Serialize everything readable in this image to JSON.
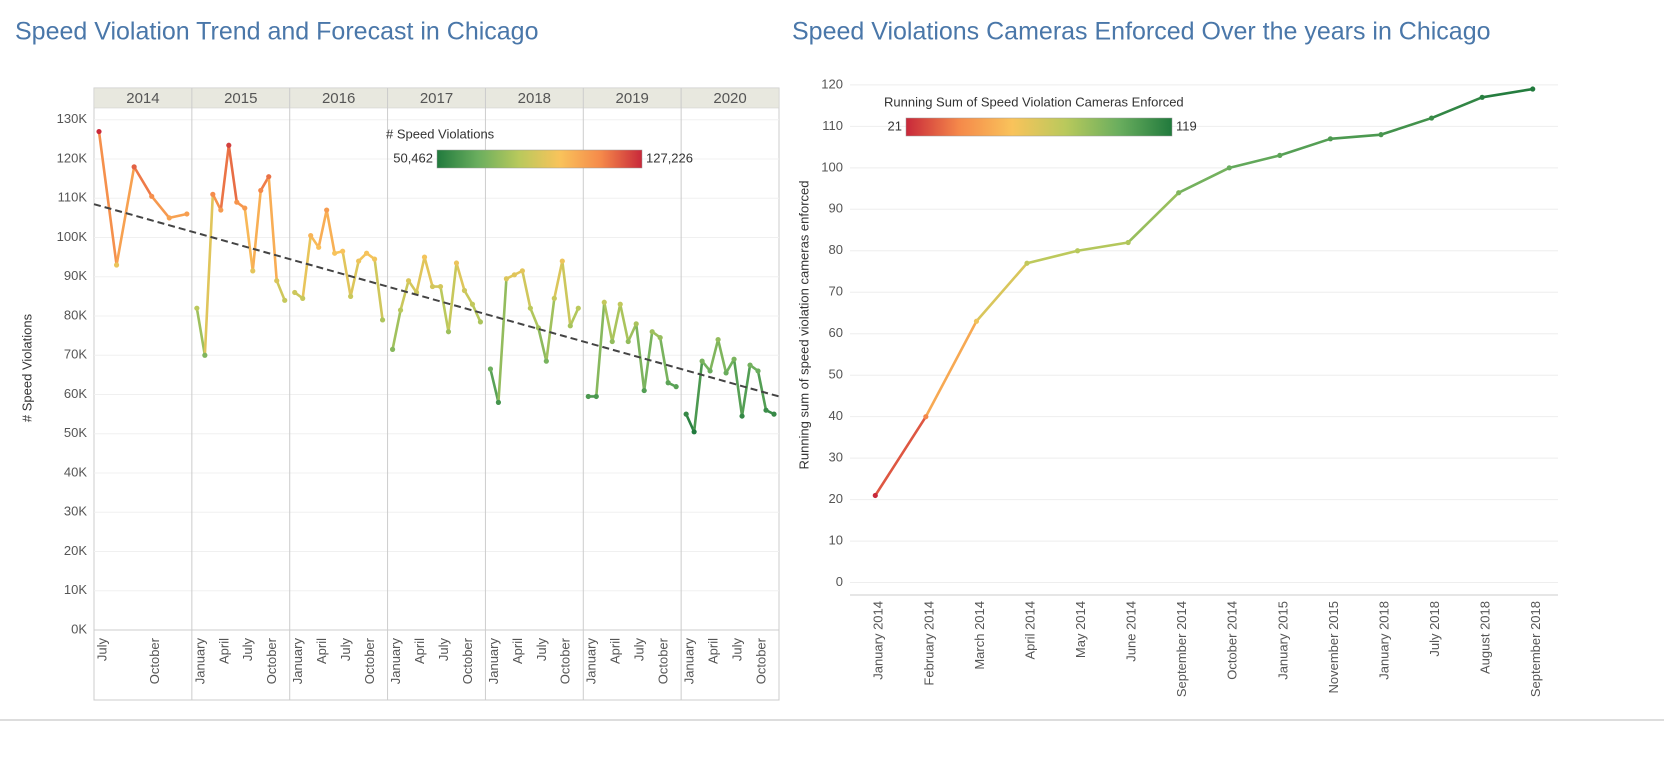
{
  "chart_data": [
    {
      "type": "line",
      "title": "Speed Violation Trend and Forecast in Chicago",
      "y_label": "# Speed Violations",
      "ylim": [
        0,
        133000
      ],
      "yticks": [
        {
          "value": 0,
          "label": "0K"
        },
        {
          "value": 10000,
          "label": "10K"
        },
        {
          "value": 20000,
          "label": "20K"
        },
        {
          "value": 30000,
          "label": "30K"
        },
        {
          "value": 40000,
          "label": "40K"
        },
        {
          "value": 50000,
          "label": "50K"
        },
        {
          "value": 60000,
          "label": "60K"
        },
        {
          "value": 70000,
          "label": "70K"
        },
        {
          "value": 80000,
          "label": "80K"
        },
        {
          "value": 90000,
          "label": "90K"
        },
        {
          "value": 100000,
          "label": "100K"
        },
        {
          "value": 110000,
          "label": "110K"
        },
        {
          "value": 120000,
          "label": "120K"
        },
        {
          "value": 130000,
          "label": "130K"
        }
      ],
      "grid": true,
      "legend": {
        "title": "# Speed Violations",
        "min": {
          "value": 50462,
          "label": "50,462"
        },
        "max": {
          "value": 127226,
          "label": "127,226"
        },
        "colors": [
          "#217a3d",
          "#6aae5e",
          "#b9c95c",
          "#f9c35b",
          "#f5894a",
          "#c8283a"
        ]
      },
      "trend": [
        108500,
        59500
      ],
      "panels": [
        {
          "label": "2014",
          "categories": [
            "July",
            null,
            null,
            "October",
            null,
            null
          ],
          "values": [
            127000,
            93000,
            118000,
            110500,
            105000,
            106000
          ]
        },
        {
          "label": "2015",
          "categories": [
            "January",
            null,
            null,
            "April",
            null,
            null,
            "July",
            null,
            null,
            "October",
            null,
            null
          ],
          "values": [
            82000,
            70000,
            111000,
            107000,
            123500,
            109000,
            107500,
            91500,
            112000,
            115500,
            89000,
            84000
          ]
        },
        {
          "label": "2016",
          "categories": [
            "January",
            null,
            null,
            "April",
            null,
            null,
            "July",
            null,
            null,
            "October",
            null,
            null
          ],
          "values": [
            86000,
            84500,
            100500,
            97500,
            107000,
            96000,
            96500,
            85000,
            94000,
            96000,
            94500,
            79000
          ]
        },
        {
          "label": "2017",
          "categories": [
            "January",
            null,
            null,
            "April",
            null,
            null,
            "July",
            null,
            null,
            "October",
            null,
            null
          ],
          "values": [
            71500,
            81500,
            89000,
            86000,
            95000,
            87500,
            87500,
            76000,
            93500,
            86500,
            83000,
            78500
          ]
        },
        {
          "label": "2018",
          "categories": [
            "January",
            null,
            null,
            "April",
            null,
            null,
            "July",
            null,
            null,
            "October",
            null,
            null
          ],
          "values": [
            66500,
            58000,
            89500,
            90500,
            91500,
            82000,
            77000,
            68500,
            84500,
            94000,
            77500,
            82000
          ]
        },
        {
          "label": "2019",
          "categories": [
            "January",
            null,
            null,
            "April",
            null,
            null,
            "July",
            null,
            null,
            "October",
            null,
            null
          ],
          "values": [
            59500,
            59500,
            83500,
            73500,
            83000,
            73500,
            78000,
            61000,
            76000,
            74500,
            63000,
            62000
          ]
        },
        {
          "label": "2020",
          "categories": [
            "January",
            null,
            null,
            "April",
            null,
            null,
            "July",
            null,
            null,
            "October",
            null,
            null
          ],
          "values": [
            55000,
            50500,
            68500,
            66000,
            74000,
            65500,
            69000,
            54500,
            67500,
            66000,
            56000,
            55000
          ]
        }
      ]
    },
    {
      "type": "line",
      "title": "Speed Violations Cameras Enforced Over the years in Chicago",
      "y_label": "Running sum of speed violation cameras enforced",
      "ylim": [
        -3,
        126
      ],
      "yticks": [
        0,
        10,
        20,
        30,
        40,
        50,
        60,
        70,
        80,
        90,
        100,
        110,
        120
      ],
      "grid": true,
      "legend": {
        "title": "Running Sum of Speed Violation Cameras Enforced",
        "min": 21,
        "max": 119,
        "colors": [
          "#c8283a",
          "#f5894a",
          "#f9c35b",
          "#b9c95c",
          "#6aae5e",
          "#217a3d"
        ]
      },
      "categories": [
        "January 2014",
        "February 2014",
        "March 2014",
        "April 2014",
        "May 2014",
        "June 2014",
        "September 2014",
        "October 2014",
        "January 2015",
        "November 2015",
        "January 2018",
        "July 2018",
        "August 2018",
        "September 2018"
      ],
      "values": [
        21,
        40,
        63,
        77,
        80,
        82,
        94,
        100,
        103,
        107,
        108,
        112,
        117,
        119
      ]
    }
  ]
}
